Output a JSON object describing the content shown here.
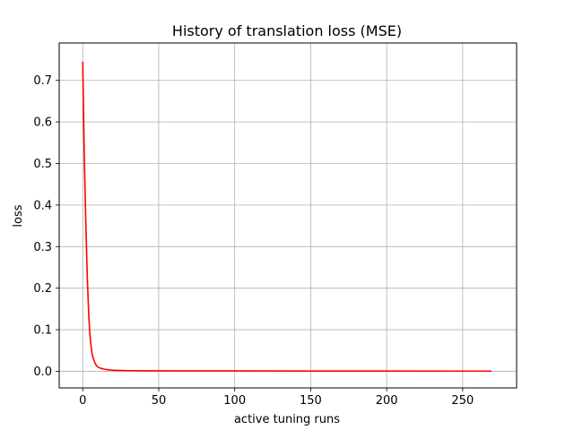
{
  "chart_data": {
    "type": "line",
    "title": "History of translation loss (MSE)",
    "xlabel": "active tuning runs",
    "ylabel": "loss",
    "xlim": [
      -15.5,
      285.5
    ],
    "ylim": [
      -0.04,
      0.79
    ],
    "xticks": [
      0,
      50,
      100,
      150,
      200,
      250
    ],
    "xtick_labels": [
      "0",
      "50",
      "100",
      "150",
      "200",
      "250"
    ],
    "yticks": [
      0.0,
      0.1,
      0.2,
      0.3,
      0.4,
      0.5,
      0.6,
      0.7
    ],
    "ytick_labels": [
      "0.0",
      "0.1",
      "0.2",
      "0.3",
      "0.4",
      "0.5",
      "0.6",
      "0.7"
    ],
    "grid": true,
    "series": [
      {
        "name": "loss",
        "color": "#ff0000",
        "x": [
          0,
          1,
          2,
          3,
          4,
          5,
          6,
          7,
          8,
          9,
          10,
          12,
          14,
          16,
          18,
          20,
          25,
          30,
          40,
          50,
          75,
          100,
          150,
          200,
          250,
          269
        ],
        "y": [
          0.745,
          0.52,
          0.36,
          0.225,
          0.13,
          0.075,
          0.045,
          0.03,
          0.02,
          0.014,
          0.01,
          0.007,
          0.005,
          0.004,
          0.003,
          0.0025,
          0.002,
          0.0015,
          0.0012,
          0.001,
          0.0009,
          0.0008,
          0.0006,
          0.0005,
          0.0004,
          0.0004
        ]
      }
    ]
  }
}
